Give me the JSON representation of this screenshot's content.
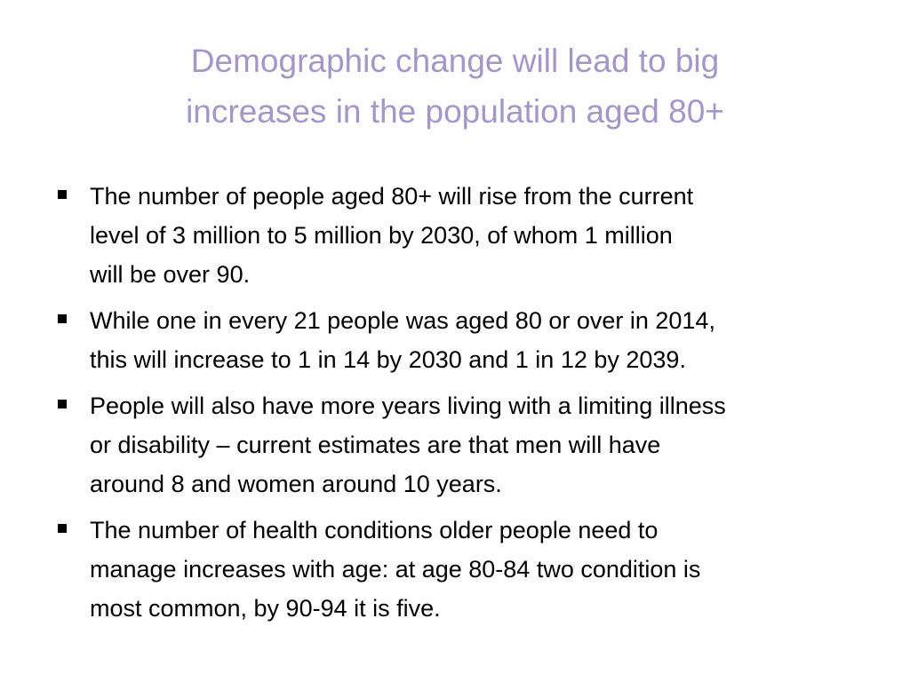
{
  "slide": {
    "title_lines": [
      "Demographic change will lead to big",
      "increases in the population aged 80+"
    ],
    "bullets": [
      {
        "lines": [
          "The number of people aged 80+ will rise from the current",
          "level of 3 million to 5 million by 2030, of whom 1 million",
          "will be over 90."
        ]
      },
      {
        "lines": [
          "While one in every 21 people was aged 80 or over in 2014,",
          "this will increase to 1 in 14 by 2030 and 1 in 12 by 2039."
        ]
      },
      {
        "lines": [
          "People will also have more years living with a limiting illness",
          "or disability – current estimates are that men will have",
          "around 8 and women around 10 years."
        ]
      },
      {
        "lines": [
          "The number of health conditions older people need to",
          "manage increases with age: at age 80-84 two condition is",
          "most common, by 90-94 it is five."
        ]
      }
    ]
  }
}
